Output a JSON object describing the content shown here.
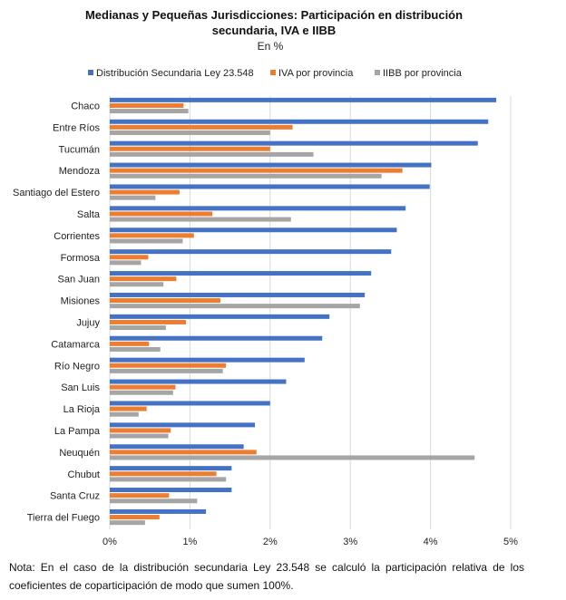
{
  "chart_data": {
    "type": "bar",
    "orientation": "horizontal",
    "title": "Medianas y Pequeñas Jurisdicciones: Participación en distribución secundaria, IVA e IIBB",
    "title_lines": [
      "Medianas y Pequeñas Jurisdicciones: Participación en distribución",
      "secundaria, IVA e IIBB"
    ],
    "subtitle": "En %",
    "legend_position": "top",
    "xlim": [
      0,
      5
    ],
    "xticks": [
      "0%",
      "1%",
      "2%",
      "3%",
      "4%",
      "5%"
    ],
    "grid": true,
    "categories": [
      "Chaco",
      "Entre Ríos",
      "Tucumán",
      "Mendoza",
      "Santiago del Estero",
      "Salta",
      "Corrientes",
      "Formosa",
      "San Juan",
      "Misiones",
      "Jujuy",
      "Catamarca",
      "Río Negro",
      "San Luis",
      "La Rioja",
      "La Pampa",
      "Neuquén",
      "Chubut",
      "Santa Cruz",
      "Tierra del Fuego"
    ],
    "series": [
      {
        "name": "Distribución Secundaria Ley 23.548",
        "color": "#4472c4",
        "values": [
          4.82,
          4.72,
          4.59,
          4.01,
          3.99,
          3.69,
          3.58,
          3.51,
          3.26,
          3.18,
          2.74,
          2.65,
          2.43,
          2.2,
          2.0,
          1.81,
          1.67,
          1.52,
          1.52,
          1.2
        ]
      },
      {
        "name": "IVA por provincia",
        "color": "#ed7d31",
        "values": [
          0.92,
          2.28,
          2.0,
          3.65,
          0.87,
          1.28,
          1.05,
          0.48,
          0.83,
          1.38,
          0.95,
          0.49,
          1.45,
          0.82,
          0.46,
          0.76,
          1.83,
          1.33,
          0.74,
          0.62
        ]
      },
      {
        "name": "IIBB por provincia",
        "color": "#a5a5a5",
        "values": [
          0.98,
          2.0,
          2.54,
          3.39,
          0.57,
          2.26,
          0.91,
          0.39,
          0.67,
          3.12,
          0.7,
          0.63,
          1.41,
          0.79,
          0.36,
          0.73,
          4.55,
          1.45,
          1.09,
          0.44
        ]
      }
    ]
  },
  "note": "Nota: En el caso de la distribución secundaria Ley 23.548 se calculó la participación relativa de los coeficientes de coparticipación de modo que sumen 100%."
}
